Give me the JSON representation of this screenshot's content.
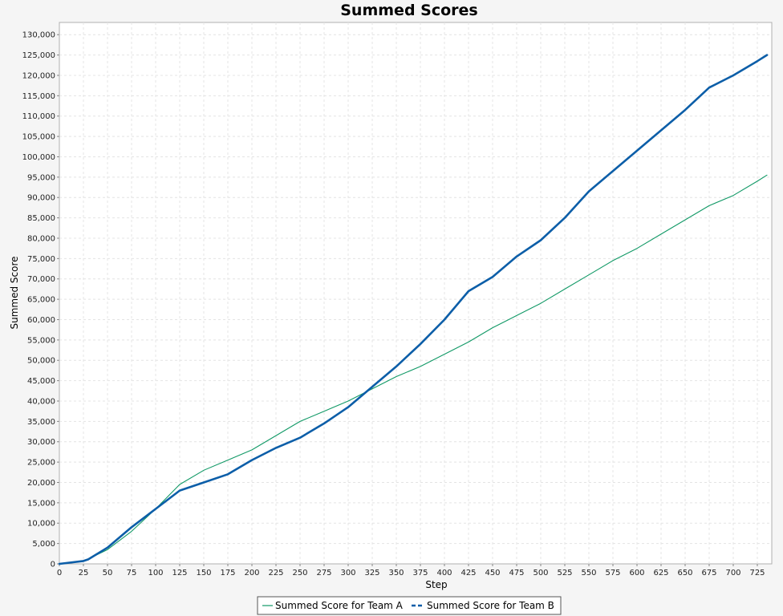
{
  "chart_data": {
    "type": "line",
    "title": "Summed Scores",
    "xlabel": "Step",
    "ylabel": "Summed Score",
    "xlim": [
      0,
      740
    ],
    "ylim": [
      0,
      133000
    ],
    "x_ticks": [
      0,
      25,
      50,
      75,
      100,
      125,
      150,
      175,
      200,
      225,
      250,
      275,
      300,
      325,
      350,
      375,
      400,
      425,
      450,
      475,
      500,
      525,
      550,
      575,
      600,
      625,
      650,
      675,
      700,
      725
    ],
    "y_ticks": [
      0,
      5000,
      10000,
      15000,
      20000,
      25000,
      30000,
      35000,
      40000,
      45000,
      50000,
      55000,
      60000,
      65000,
      70000,
      75000,
      80000,
      85000,
      90000,
      95000,
      100000,
      105000,
      110000,
      115000,
      120000,
      125000,
      130000
    ],
    "grid": true,
    "legend_position": "bottom",
    "x": [
      0,
      25,
      30,
      50,
      75,
      100,
      125,
      150,
      175,
      200,
      225,
      250,
      275,
      300,
      325,
      350,
      375,
      400,
      425,
      450,
      475,
      500,
      525,
      550,
      575,
      600,
      625,
      650,
      675,
      700,
      725,
      735
    ],
    "series": [
      {
        "name": "Summed Score for Team A",
        "color": "#119966",
        "style": "solid-thin",
        "values": [
          0,
          600,
          1200,
          3500,
          8000,
          13500,
          19500,
          23000,
          25500,
          28000,
          31500,
          35000,
          37500,
          40000,
          43000,
          46000,
          48500,
          51500,
          54500,
          58000,
          61000,
          64000,
          67500,
          71000,
          74500,
          77500,
          81000,
          84500,
          88000,
          90500,
          94000,
          95500
        ]
      },
      {
        "name": "Summed Score for Team B",
        "color": "#0c5ea8",
        "style": "thick",
        "values": [
          0,
          700,
          1100,
          4000,
          9000,
          13500,
          18000,
          20000,
          22000,
          25500,
          28500,
          31000,
          34500,
          38500,
          43500,
          48500,
          54000,
          60000,
          67000,
          70500,
          75500,
          79500,
          85000,
          91500,
          96500,
          101500,
          106500,
          111500,
          117000,
          120000,
          123500,
          125000
        ]
      }
    ]
  }
}
